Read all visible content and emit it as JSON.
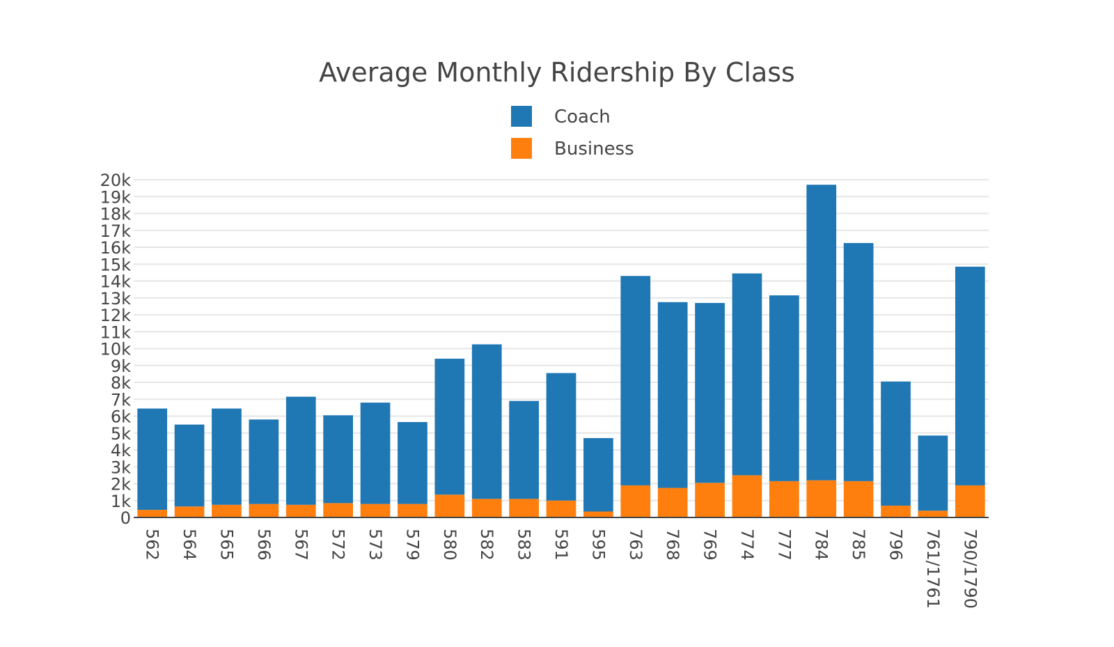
{
  "chart_data": {
    "type": "bar",
    "barmode": "stack",
    "title": "Average Monthly Ridership By Class",
    "xlabel": "",
    "ylabel": "",
    "ylim": [
      0,
      20000
    ],
    "yticks": [
      0,
      1000,
      2000,
      3000,
      4000,
      5000,
      6000,
      7000,
      8000,
      9000,
      10000,
      11000,
      12000,
      13000,
      14000,
      15000,
      16000,
      17000,
      18000,
      19000,
      20000
    ],
    "ytick_labels": [
      "0",
      "1k",
      "2k",
      "3k",
      "4k",
      "5k",
      "6k",
      "7k",
      "8k",
      "9k",
      "10k",
      "11k",
      "12k",
      "13k",
      "14k",
      "15k",
      "16k",
      "17k",
      "18k",
      "19k",
      "20k"
    ],
    "grid": true,
    "legend_position": "top-center",
    "categories": [
      "562",
      "564",
      "565",
      "566",
      "567",
      "572",
      "573",
      "579",
      "580",
      "582",
      "583",
      "591",
      "595",
      "763",
      "768",
      "769",
      "774",
      "777",
      "784",
      "785",
      "796",
      "761/1761",
      "790/1790"
    ],
    "series": [
      {
        "name": "Business",
        "color": "#ff7f0e",
        "values": [
          450,
          650,
          750,
          800,
          750,
          850,
          800,
          800,
          1350,
          1100,
          1100,
          1000,
          350,
          1900,
          1750,
          2050,
          2500,
          2150,
          2200,
          2150,
          700,
          400,
          1900
        ]
      },
      {
        "name": "Coach",
        "color": "#1f77b4",
        "values": [
          6000,
          4850,
          5700,
          5000,
          6400,
          5200,
          6000,
          4850,
          8050,
          9150,
          5800,
          7550,
          4350,
          12400,
          11000,
          10650,
          11950,
          11000,
          17500,
          14100,
          7350,
          4450,
          12950
        ]
      }
    ],
    "legend_order": [
      "Coach",
      "Business"
    ]
  }
}
